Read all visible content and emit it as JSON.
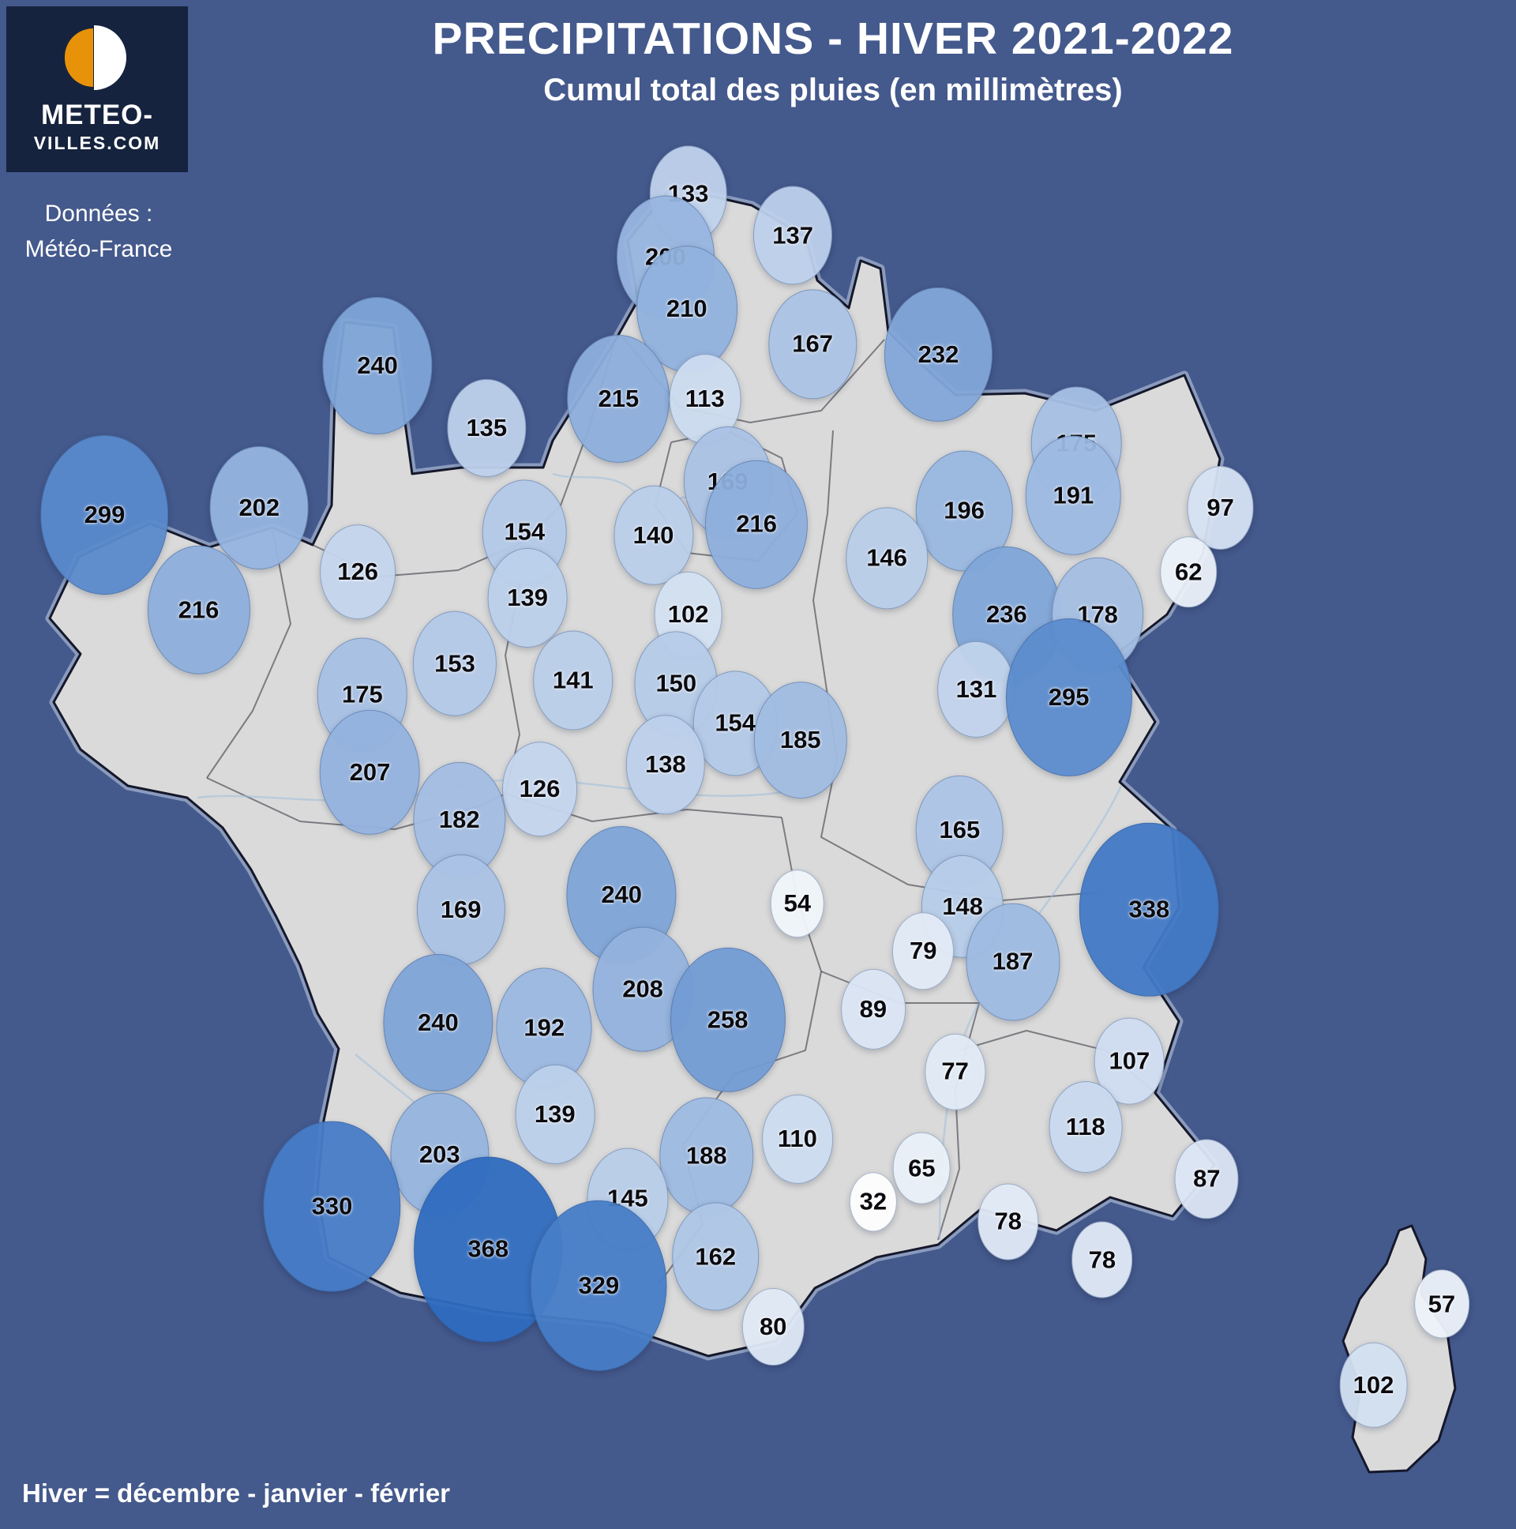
{
  "logo": {
    "line1": "METEO-",
    "line2": "VILLES.COM"
  },
  "source": {
    "line1": "Données :",
    "line2": "Météo-France"
  },
  "header": {
    "title": "PRECIPITATIONS - HIVER 2021-2022",
    "subtitle": "Cumul total des pluies (en millimètres)"
  },
  "footer": {
    "note": "Hiver = décembre - janvier - février"
  },
  "colors": {
    "background": "#44598c",
    "logo_background": "#16233e",
    "logo_orange": "#e8920a",
    "land_gray": "#dadada",
    "bubble_low": "#ffffff",
    "bubble_high": "#2e6bbf",
    "text": "#ffffff"
  },
  "chart_data": {
    "type": "bubble-map",
    "title": "PRECIPITATIONS - HIVER 2021-2022",
    "subtitle": "Cumul total des pluies (en millimètres)",
    "region": "France",
    "unit": "mm",
    "source": "Météo-France",
    "note": "Hiver = décembre - janvier - février",
    "color_scale": {
      "min_value": 30,
      "max_value": 370,
      "low_color": "#ffffff",
      "high_color": "#2e6bbf"
    },
    "points": [
      {
        "value": 133,
        "x": 45.4,
        "y": 12.7
      },
      {
        "value": 137,
        "x": 52.3,
        "y": 15.4
      },
      {
        "value": 200,
        "x": 43.9,
        "y": 16.8
      },
      {
        "value": 210,
        "x": 45.3,
        "y": 20.2
      },
      {
        "value": 167,
        "x": 53.6,
        "y": 22.5
      },
      {
        "value": 232,
        "x": 61.9,
        "y": 23.2
      },
      {
        "value": 240,
        "x": 24.9,
        "y": 23.9
      },
      {
        "value": 215,
        "x": 40.8,
        "y": 26.1
      },
      {
        "value": 113,
        "x": 46.5,
        "y": 26.1
      },
      {
        "value": 135,
        "x": 32.1,
        "y": 28.0
      },
      {
        "value": 175,
        "x": 71.0,
        "y": 29.0
      },
      {
        "value": 191,
        "x": 70.8,
        "y": 32.4
      },
      {
        "value": 97,
        "x": 80.5,
        "y": 33.2
      },
      {
        "value": 299,
        "x": 6.9,
        "y": 33.7
      },
      {
        "value": 202,
        "x": 17.1,
        "y": 33.2
      },
      {
        "value": 169,
        "x": 48.0,
        "y": 31.5
      },
      {
        "value": 216,
        "x": 49.9,
        "y": 34.3
      },
      {
        "value": 196,
        "x": 63.6,
        "y": 33.4
      },
      {
        "value": 154,
        "x": 34.6,
        "y": 34.8
      },
      {
        "value": 140,
        "x": 43.1,
        "y": 35.0
      },
      {
        "value": 146,
        "x": 58.5,
        "y": 36.5
      },
      {
        "value": 62,
        "x": 78.4,
        "y": 37.4
      },
      {
        "value": 126,
        "x": 23.6,
        "y": 37.4
      },
      {
        "value": 216,
        "x": 13.1,
        "y": 39.9
      },
      {
        "value": 139,
        "x": 34.8,
        "y": 39.1
      },
      {
        "value": 102,
        "x": 45.4,
        "y": 40.2
      },
      {
        "value": 236,
        "x": 66.4,
        "y": 40.2
      },
      {
        "value": 178,
        "x": 72.4,
        "y": 40.2
      },
      {
        "value": 153,
        "x": 30.0,
        "y": 43.4
      },
      {
        "value": 141,
        "x": 37.8,
        "y": 44.5
      },
      {
        "value": 150,
        "x": 44.6,
        "y": 44.7
      },
      {
        "value": 131,
        "x": 64.4,
        "y": 45.1
      },
      {
        "value": 295,
        "x": 70.5,
        "y": 45.6
      },
      {
        "value": 175,
        "x": 23.9,
        "y": 45.4
      },
      {
        "value": 154,
        "x": 48.5,
        "y": 47.3
      },
      {
        "value": 185,
        "x": 52.8,
        "y": 48.4
      },
      {
        "value": 138,
        "x": 43.9,
        "y": 50.0
      },
      {
        "value": 207,
        "x": 24.4,
        "y": 50.5
      },
      {
        "value": 126,
        "x": 35.6,
        "y": 51.6
      },
      {
        "value": 182,
        "x": 30.3,
        "y": 53.6
      },
      {
        "value": 165,
        "x": 63.3,
        "y": 54.3
      },
      {
        "value": 169,
        "x": 30.4,
        "y": 59.5
      },
      {
        "value": 240,
        "x": 41.0,
        "y": 58.5
      },
      {
        "value": 54,
        "x": 52.6,
        "y": 59.1
      },
      {
        "value": 148,
        "x": 63.5,
        "y": 59.3
      },
      {
        "value": 338,
        "x": 75.8,
        "y": 59.5
      },
      {
        "value": 79,
        "x": 60.9,
        "y": 62.2
      },
      {
        "value": 187,
        "x": 66.8,
        "y": 62.9
      },
      {
        "value": 208,
        "x": 42.4,
        "y": 64.7
      },
      {
        "value": 89,
        "x": 57.6,
        "y": 66.0
      },
      {
        "value": 240,
        "x": 28.9,
        "y": 66.9
      },
      {
        "value": 192,
        "x": 35.9,
        "y": 67.2
      },
      {
        "value": 258,
        "x": 48.0,
        "y": 66.7
      },
      {
        "value": 77,
        "x": 63.0,
        "y": 70.1
      },
      {
        "value": 107,
        "x": 74.5,
        "y": 69.4
      },
      {
        "value": 139,
        "x": 36.6,
        "y": 72.9
      },
      {
        "value": 118,
        "x": 71.6,
        "y": 73.7
      },
      {
        "value": 203,
        "x": 29.0,
        "y": 75.5
      },
      {
        "value": 188,
        "x": 46.6,
        "y": 75.6
      },
      {
        "value": 110,
        "x": 52.6,
        "y": 74.5
      },
      {
        "value": 65,
        "x": 60.8,
        "y": 76.4
      },
      {
        "value": 87,
        "x": 79.6,
        "y": 77.1
      },
      {
        "value": 330,
        "x": 21.9,
        "y": 78.9
      },
      {
        "value": 145,
        "x": 41.4,
        "y": 78.4
      },
      {
        "value": 32,
        "x": 57.6,
        "y": 78.6
      },
      {
        "value": 78,
        "x": 66.5,
        "y": 79.9
      },
      {
        "value": 368,
        "x": 32.2,
        "y": 81.7
      },
      {
        "value": 162,
        "x": 47.2,
        "y": 82.2
      },
      {
        "value": 78,
        "x": 72.7,
        "y": 82.4
      },
      {
        "value": 329,
        "x": 39.5,
        "y": 84.1
      },
      {
        "value": 57,
        "x": 95.1,
        "y": 85.3
      },
      {
        "value": 80,
        "x": 51.0,
        "y": 86.8
      },
      {
        "value": 102,
        "x": 90.6,
        "y": 90.6
      }
    ]
  }
}
